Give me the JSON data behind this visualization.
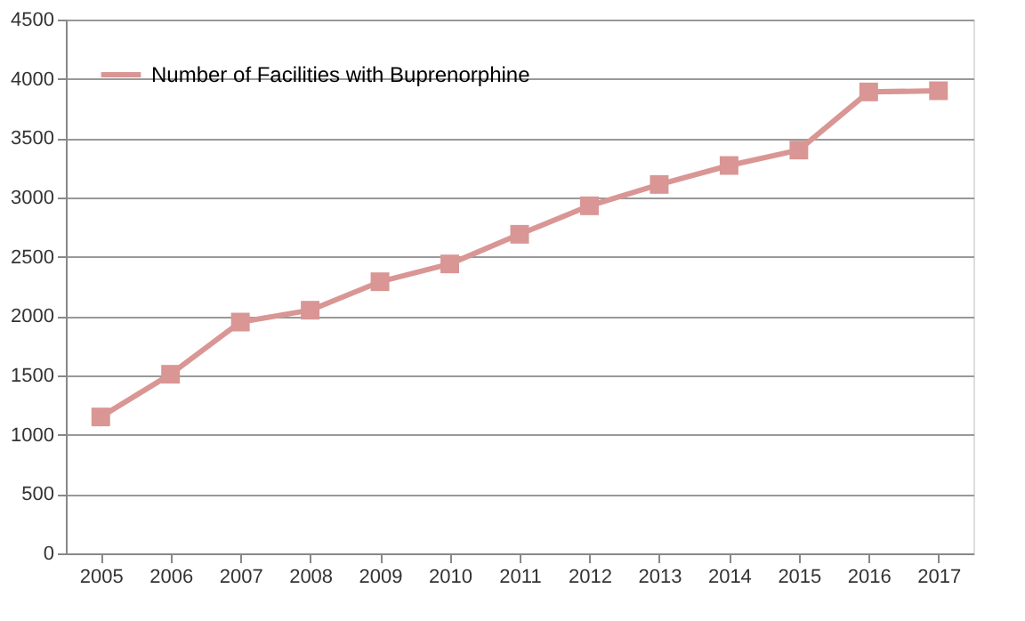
{
  "chart_data": {
    "type": "line",
    "categories": [
      "2005",
      "2006",
      "2007",
      "2008",
      "2009",
      "2010",
      "2011",
      "2012",
      "2013",
      "2014",
      "2015",
      "2016",
      "2017"
    ],
    "series": [
      {
        "name": "Number of Facilities with Buprenorphine",
        "color": "#d99694",
        "values": [
          1150,
          1510,
          1950,
          2050,
          2290,
          2440,
          2690,
          2930,
          3110,
          3270,
          3400,
          3890,
          3900
        ]
      }
    ],
    "ylim": [
      0,
      4500
    ],
    "yticks": [
      0,
      500,
      1000,
      1500,
      2000,
      2500,
      3000,
      3500,
      4000,
      4500
    ],
    "grid": "y",
    "legend": "top left",
    "marker": "square",
    "line_style": "solid"
  }
}
